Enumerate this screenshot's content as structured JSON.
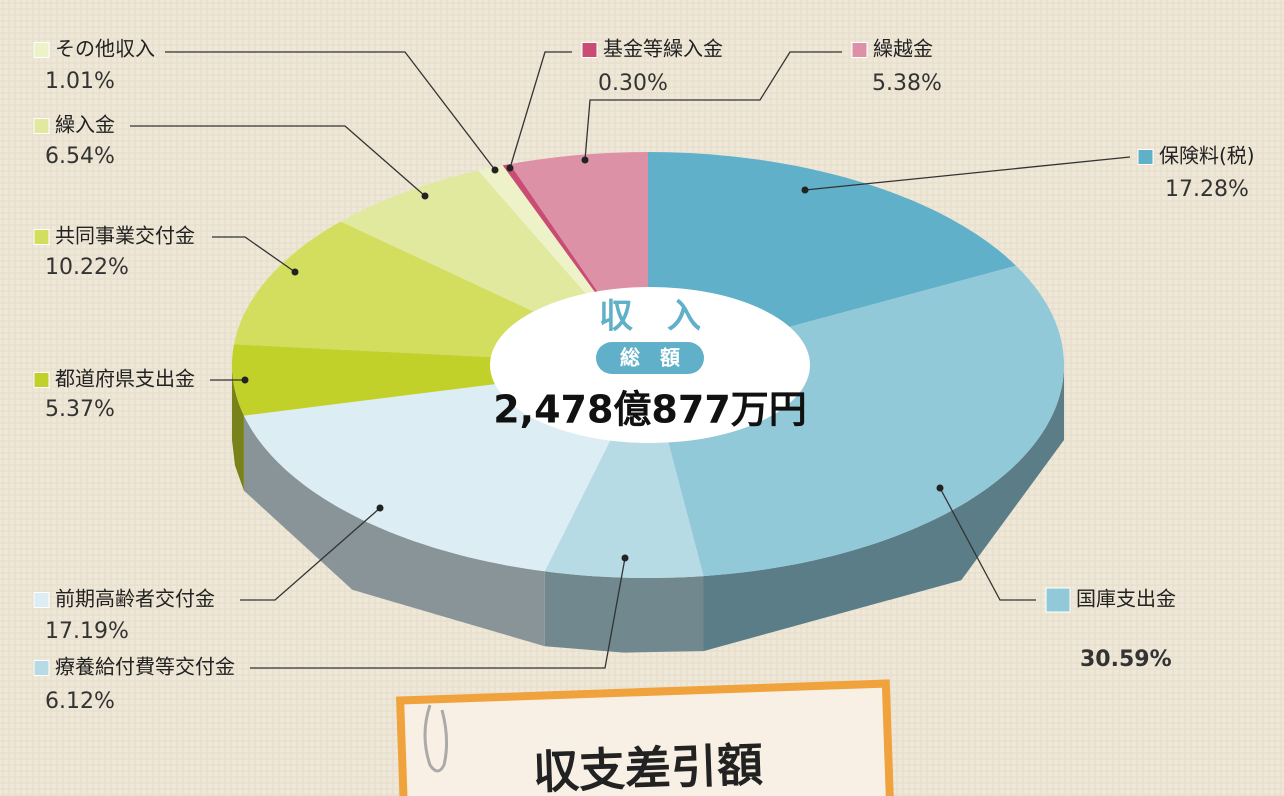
{
  "chart_data": {
    "type": "pie3d",
    "center_title": "収　入",
    "center_subtitle": "総　額",
    "total": "2,478億877万円",
    "footer_title": "収支差引額",
    "categories": [
      "保険料(税)",
      "国庫支出金",
      "療養給付費等交付金",
      "前期高齢者交付金",
      "都道府県支出金",
      "共同事業交付金",
      "繰入金",
      "その他収入",
      "基金等繰入金",
      "繰越金"
    ],
    "values": [
      17.28,
      30.59,
      6.12,
      17.19,
      5.37,
      10.22,
      6.54,
      1.01,
      0.3,
      5.38
    ],
    "value_labels": [
      "17.28%",
      "30.59%",
      "6.12%",
      "17.19%",
      "5.37%",
      "10.22%",
      "6.54%",
      "1.01%",
      "0.30%",
      "5.38%"
    ],
    "colors": [
      "#5fb0c8",
      "#92c9d9",
      "#b7dbe5",
      "#dceef3",
      "#c2d02a",
      "#d4de5e",
      "#e1e99f",
      "#eef2c8",
      "#c84c74",
      "#dd91a6"
    ]
  }
}
